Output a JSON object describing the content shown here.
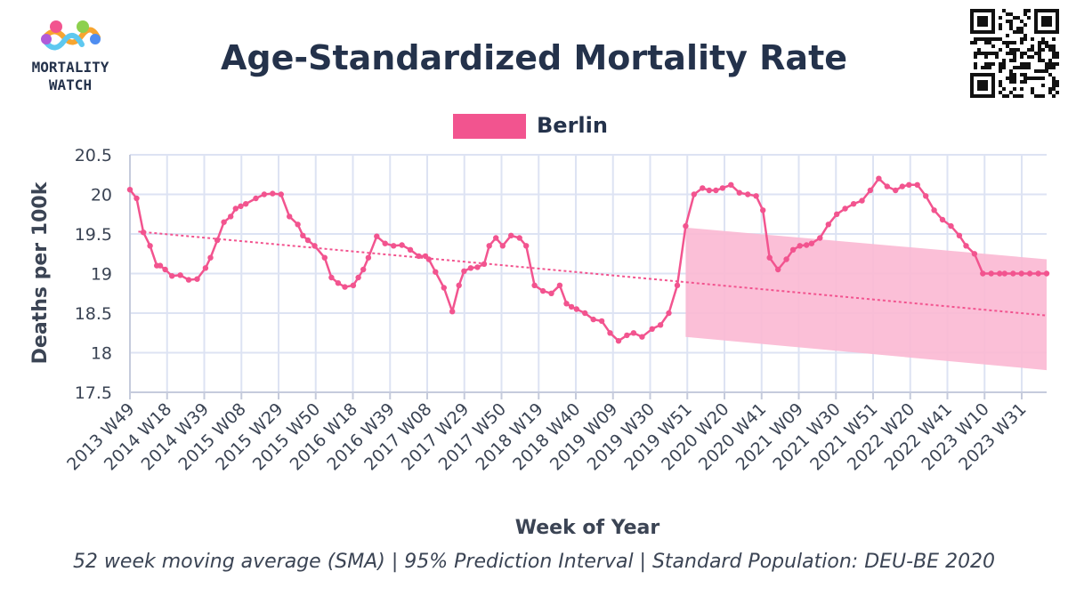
{
  "logo": {
    "line1": "MORTALITY",
    "line2": "WATCH"
  },
  "chart_data": {
    "type": "line",
    "title": "Age-Standardized Mortality Rate",
    "xlabel": "Week of Year",
    "ylabel": "Deaths per 100k",
    "caption": "52 week moving average (SMA) | 95% Prediction Interval | Standard Population: DEU-BE 2020",
    "ylim": [
      17.5,
      20.5
    ],
    "yticks": [
      "20.5",
      "20",
      "19.5",
      "19",
      "18.5",
      "18",
      "17.5"
    ],
    "xticks": [
      "2013 W49",
      "2014 W18",
      "2014 W39",
      "2015 W08",
      "2015 W29",
      "2015 W50",
      "2016 W18",
      "2016 W39",
      "2017 W08",
      "2017 W29",
      "2017 W50",
      "2018 W19",
      "2018 W40",
      "2019 W09",
      "2019 W30",
      "2019 W51",
      "2020 W20",
      "2020 W41",
      "2021 W09",
      "2021 W30",
      "2021 W51",
      "2022 W20",
      "2022 W41",
      "2023 W10",
      "2023 W31"
    ],
    "grid": true,
    "legend_position": "top-center",
    "colors": {
      "series": "#f2548f",
      "band": "#fbb8d3",
      "grid": "#dde3f3",
      "axis": "#c5cbdc"
    },
    "series": [
      {
        "name": "Berlin",
        "x_index": [
          0,
          4,
          8,
          12,
          16,
          18,
          21,
          25,
          30,
          35,
          40,
          45,
          48,
          52,
          56,
          60,
          63,
          66,
          69,
          75,
          80,
          85,
          90,
          95,
          100,
          103,
          106,
          110,
          116,
          120,
          124,
          128,
          133,
          136,
          139,
          142,
          147,
          152,
          157,
          162,
          167,
          172,
          176,
          178,
          182,
          187,
          192,
          196,
          199,
          203,
          207,
          211,
          214,
          218,
          222,
          227,
          232,
          236,
          241,
          246,
          251,
          256,
          260,
          263,
          266,
          271,
          276,
          281,
          286,
          291,
          296,
          300,
          305,
          311,
          316,
          321,
          326,
          331,
          336,
          341,
          345,
          349,
          353,
          358,
          363,
          368,
          373,
          377,
          381,
          386,
          391,
          395,
          399,
          403,
          406,
          411,
          416,
          421,
          426,
          431,
          436,
          441,
          446,
          451,
          456,
          460,
          464,
          469,
          474,
          479,
          484,
          489,
          494,
          498,
          503,
          508,
          513,
          518,
          521,
          526,
          531,
          536,
          541,
          546
        ],
        "values": [
          20.06,
          19.95,
          19.52,
          19.35,
          19.1,
          19.1,
          19.05,
          18.97,
          18.98,
          18.92,
          18.93,
          19.07,
          19.2,
          19.42,
          19.65,
          19.72,
          19.82,
          19.85,
          19.88,
          19.95,
          20.0,
          20.01,
          20.0,
          19.72,
          19.62,
          19.48,
          19.42,
          19.35,
          19.2,
          18.95,
          18.88,
          18.83,
          18.85,
          18.95,
          19.05,
          19.2,
          19.47,
          19.38,
          19.35,
          19.36,
          19.3,
          19.22,
          19.22,
          19.18,
          19.02,
          18.82,
          18.52,
          18.85,
          19.03,
          19.07,
          19.08,
          19.12,
          19.35,
          19.45,
          19.35,
          19.48,
          19.45,
          19.35,
          18.85,
          18.78,
          18.75,
          18.85,
          18.62,
          18.58,
          18.55,
          18.5,
          18.42,
          18.4,
          18.25,
          18.15,
          18.22,
          18.25,
          18.2,
          18.3,
          18.35,
          18.5,
          18.85,
          19.6,
          20.0,
          20.08,
          20.05,
          20.05,
          20.08,
          20.12,
          20.02,
          20.0,
          19.98,
          19.8,
          19.2,
          19.05,
          19.18,
          19.3,
          19.35,
          19.36,
          19.38,
          19.45,
          19.62,
          19.75,
          19.82,
          19.88,
          19.92,
          20.05,
          20.2,
          20.1,
          20.05,
          20.1,
          20.12,
          20.12,
          19.98,
          19.8,
          19.68,
          19.6,
          19.48,
          19.35,
          19.25,
          19.0,
          19.0,
          19.0,
          19.0,
          19.0,
          19.0,
          19.0,
          19.0,
          19.0
        ]
      }
    ],
    "trend": {
      "x_index": [
        5,
        546
      ],
      "values": [
        19.53,
        18.47
      ]
    },
    "prediction_interval": {
      "x_index": [
        331,
        546
      ],
      "upper": [
        19.58,
        19.18
      ],
      "lower": [
        18.2,
        17.78
      ]
    }
  }
}
